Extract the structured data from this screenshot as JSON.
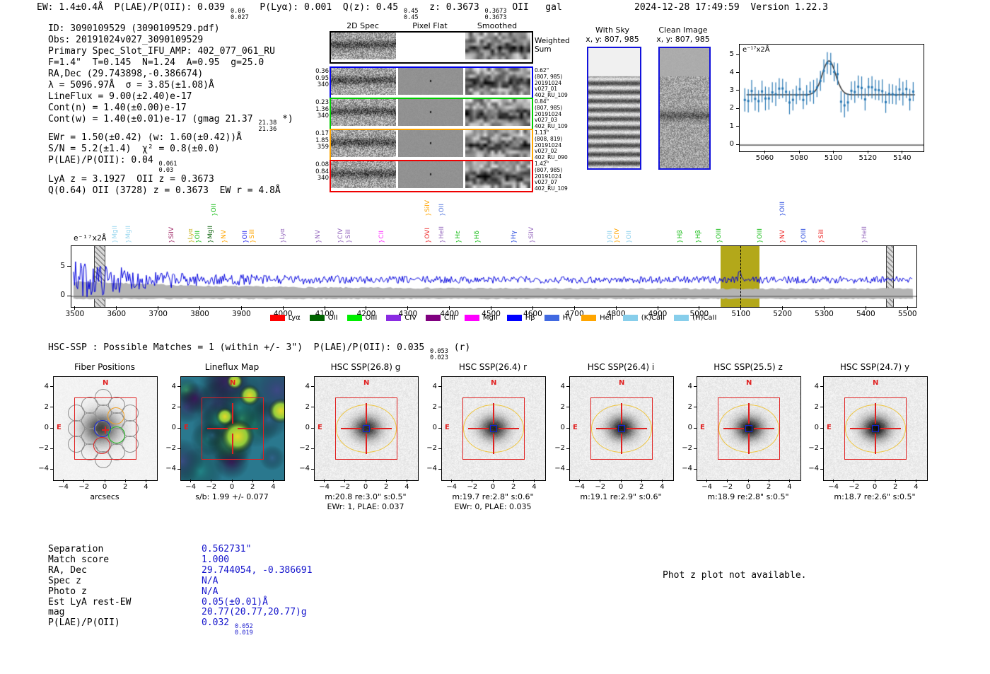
{
  "header": {
    "left_rich": "EW: 1.4±0.4Å  P(LAE)/P(OII): 0.039 {0.06|0.027}  P(Lyα): 0.001  Q(z): 0.45 {0.45|0.45}  z: 0.3673 {0.3673|0.3673} OII   gal",
    "right": "2024-12-28 17:49:59  Version 1.22.3"
  },
  "info_block": {
    "lines": [
      "ID: 3090109529 (3090109529.pdf)",
      "Obs: 20191024v027_3090109529",
      "Primary Spec_Slot_IFU_AMP: 402_077_061_RU",
      "F=1.4\"  T=0.145  N=1.24  A=0.95  g=25.0",
      "RA,Dec (29.743898,-0.386674)",
      "λ = 5096.97Å  σ = 3.85(±1.08)Å",
      "LineFlux = 9.00(±2.40)e-17",
      "Cont(n) = 1.40(±0.00)e-17",
      "Cont(w) = 1.40(±0.01)e-17 (gmag 21.37 {21.38|21.36} *)",
      "EWr = 1.50(±0.42) (w: 1.60(±0.42))Å",
      "S/N = 5.2(±1.4)  χ² = 0.8(±0.0)",
      "P(LAE)/P(OII): 0.04 {0.061|0.03}",
      "LyA z = 3.1927  OII z = 0.3673",
      "Q(0.64) OII (3728) z = 0.3673  EW r = 4.8Å"
    ]
  },
  "spec2d": {
    "col_headers": [
      "2D Spec",
      "Pixel Flat",
      "Smoothed"
    ],
    "rows": [
      {
        "color": "#000000",
        "left": [],
        "right": [
          "Weighted",
          "Sum"
        ]
      },
      {
        "color": "#0000ee",
        "left": [
          "0.36",
          "0.95",
          "340"
        ],
        "right": [
          "0.62\"",
          "(807, 985)",
          "20191024",
          "v027_01",
          "402_RU_109"
        ]
      },
      {
        "color": "#00cc00",
        "left": [
          "0.23",
          "1.36",
          "340"
        ],
        "right": [
          "0.84\"",
          "(807, 985)",
          "20191024",
          "v027_03",
          "402_RU_109"
        ]
      },
      {
        "color": "#ffa500",
        "left": [
          "0.17",
          "1.85",
          "359"
        ],
        "right": [
          "1.13\"",
          "(808, 819)",
          "20191024",
          "v027_02",
          "402_RU_090"
        ]
      },
      {
        "color": "#ee0000",
        "left": [
          "0.08",
          "0.84",
          "340"
        ],
        "right": [
          "1.42\"",
          "(807, 985)",
          "20191024",
          "v027_07",
          "402_RU_109"
        ]
      }
    ]
  },
  "sky_panels": [
    {
      "title": "With Sky",
      "subtitle": "x, y: 807, 985"
    },
    {
      "title": "Clean Image",
      "subtitle": "x, y: 807, 985"
    }
  ],
  "chart_data": [
    {
      "name": "line_fit_zoom",
      "type": "scatter",
      "unit_label": "e⁻¹⁷x2Å",
      "xlim": [
        5045,
        5152
      ],
      "ylim": [
        -0.35,
        5.6
      ],
      "xticks": [
        5060,
        5080,
        5100,
        5120,
        5140
      ],
      "yticks": [
        0,
        1,
        2,
        3,
        4,
        5
      ],
      "gaussian": {
        "center": 5096.97,
        "sigma": 3.85,
        "baseline": 2.8,
        "peak": 4.7
      },
      "points": {
        "x_start": 5048,
        "x_step": 2,
        "x_end": 5146,
        "scatter": 0.95,
        "err": 0.55
      },
      "point_color": "#2878b4",
      "fit_color": "#3c3c3c"
    },
    {
      "name": "full_spectrum",
      "type": "line",
      "unit_label": "e⁻¹⁷x2Å",
      "xlim": [
        3490,
        5520
      ],
      "ylim": [
        -1.8,
        8.6
      ],
      "xticks": [
        3500,
        3600,
        3700,
        3800,
        3900,
        4000,
        4100,
        4200,
        4300,
        4400,
        4500,
        4600,
        4700,
        4800,
        4900,
        5000,
        5100,
        5200,
        5300,
        5400,
        5500
      ],
      "yticks": [
        0,
        5
      ],
      "baseline": 2.85,
      "emission": {
        "center": 5096.97,
        "sigma": 4.5,
        "amp": 1.3
      },
      "line_color": "#0000dd",
      "err_color": "#b4b4b4",
      "highlight_band": {
        "x0": 5050,
        "x1": 5143,
        "color": "#b3a81a"
      },
      "marker_line": 5096.97,
      "hatched_bands": [
        [
          3545,
          3568
        ],
        [
          5447,
          5462
        ]
      ]
    }
  ],
  "line_labels": [
    {
      "wl": 3597,
      "text": "MgII",
      "color": "#9ad7ef",
      "high": false
    },
    {
      "wl": 3629,
      "text": "MgII",
      "color": "#9ad7ef",
      "high": false
    },
    {
      "wl": 3733,
      "text": "SiIV",
      "color": "#a02a68",
      "high": false
    },
    {
      "wl": 3779,
      "text": "Lyα",
      "color": "#c8b422",
      "high": false
    },
    {
      "wl": 3796,
      "text": "OII",
      "color": "#11bb11",
      "high": false
    },
    {
      "wl": 3826,
      "text": "MgII",
      "color": "#116611",
      "high": false
    },
    {
      "wl": 3835,
      "text": "OII",
      "color": "#11bb11",
      "high": true
    },
    {
      "wl": 3859,
      "text": "NV",
      "color": "#ffa500",
      "high": false
    },
    {
      "wl": 3910,
      "text": "OII",
      "color": "#2222ee",
      "high": false
    },
    {
      "wl": 3927,
      "text": "SiII",
      "color": "#ffa500",
      "high": false
    },
    {
      "wl": 4000,
      "text": "Lyα",
      "color": "#9467bd",
      "high": false
    },
    {
      "wl": 4085,
      "text": "NV",
      "color": "#9467bd",
      "high": false
    },
    {
      "wl": 4139,
      "text": "CIV",
      "color": "#9467bd",
      "high": false
    },
    {
      "wl": 4158,
      "text": "SiII",
      "color": "#9467bd",
      "high": false
    },
    {
      "wl": 4237,
      "text": "CII",
      "color": "#ff22ff",
      "high": false
    },
    {
      "wl": 4348,
      "text": "OVI",
      "color": "#ee2222",
      "high": false
    },
    {
      "wl": 4348,
      "text": "SiIV",
      "color": "#ffa500",
      "high": true
    },
    {
      "wl": 4382,
      "text": "HeII",
      "color": "#9467bd",
      "high": false
    },
    {
      "wl": 4382,
      "text": "OII",
      "color": "#5577dd",
      "high": true
    },
    {
      "wl": 4421,
      "text": "Hε",
      "color": "#11bb11",
      "high": false
    },
    {
      "wl": 4467,
      "text": "Hδ",
      "color": "#11bb11",
      "high": false
    },
    {
      "wl": 4555,
      "text": "Hγ",
      "color": "#2244dd",
      "high": false
    },
    {
      "wl": 4598,
      "text": "SiIV",
      "color": "#9467bd",
      "high": false
    },
    {
      "wl": 4786,
      "text": "OII",
      "color": "#87ceeb",
      "high": false
    },
    {
      "wl": 4803,
      "text": "CIV",
      "color": "#ffa500",
      "high": false
    },
    {
      "wl": 4832,
      "text": "OII",
      "color": "#87ceeb",
      "high": false
    },
    {
      "wl": 4954,
      "text": "Hβ",
      "color": "#11bb11",
      "high": false
    },
    {
      "wl": 4998,
      "text": "Hβ",
      "color": "#11bb11",
      "high": false
    },
    {
      "wl": 5048,
      "text": "OIII",
      "color": "#11bb11",
      "high": false
    },
    {
      "wl": 5146,
      "text": "OIII",
      "color": "#11bb11",
      "high": false
    },
    {
      "wl": 5200,
      "text": "NV",
      "color": "#ee2222",
      "high": false
    },
    {
      "wl": 5200,
      "text": "OIII",
      "color": "#2244dd",
      "high": true
    },
    {
      "wl": 5251,
      "text": "OIII",
      "color": "#2244dd",
      "high": false
    },
    {
      "wl": 5294,
      "text": "SiII",
      "color": "#ee2222",
      "high": false
    },
    {
      "wl": 5397,
      "text": "HeII",
      "color": "#9467bd",
      "high": false
    }
  ],
  "legend": [
    {
      "label": "Lyα",
      "color": "#ff0000"
    },
    {
      "label": "OII",
      "color": "#006400"
    },
    {
      "label": "OIII",
      "color": "#00ee00"
    },
    {
      "label": "CIV",
      "color": "#8a2be2"
    },
    {
      "label": "CIII",
      "color": "#800080"
    },
    {
      "label": "MgII",
      "color": "#ff00ff"
    },
    {
      "label": "Hβ",
      "color": "#0000ff"
    },
    {
      "label": "Hγ",
      "color": "#4169e1"
    },
    {
      "label": "HeII",
      "color": "#ffa500"
    },
    {
      "label": "(K)CaII",
      "color": "#87ceeb"
    },
    {
      "label": "(H)CaII",
      "color": "#87ceeb"
    }
  ],
  "match_line_rich": "HSC-SSP : Possible Matches = 1 (within +/- 3\")  P(LAE)/P(OII): 0.035 {0.053|0.023} (r)",
  "cutouts": {
    "xticks": [
      -4,
      -2,
      0,
      2,
      4
    ],
    "yticks": [
      4,
      2,
      0,
      -2,
      -4
    ],
    "panels": [
      {
        "title": "Fiber Positions",
        "xlabel": "arcsecs",
        "xlabel2": "",
        "type": "fiber",
        "north": "N",
        "east": "E"
      },
      {
        "title": "Lineflux Map",
        "xlabel": "s/b: 1.99 +/- 0.077",
        "xlabel2": "",
        "type": "lineflux",
        "north": "N",
        "east": "E"
      },
      {
        "title": "HSC SSP(26.8) g",
        "xlabel": "m:20.8 re:3.0\" s:0.5\"",
        "xlabel2": "EWr: 1, PLAE: 0.037",
        "type": "hsc",
        "north": "N",
        "east": "E"
      },
      {
        "title": "HSC SSP(26.4) r",
        "xlabel": "m:19.7 re:2.8\" s:0.6\"",
        "xlabel2": "EWr: 0, PLAE: 0.035",
        "type": "hsc",
        "north": "N",
        "east": "E"
      },
      {
        "title": "HSC SSP(26.4) i",
        "xlabel": "m:19.1 re:2.9\" s:0.6\"",
        "xlabel2": "",
        "type": "hsc",
        "north": "N",
        "east": "E"
      },
      {
        "title": "HSC SSP(25.5) z",
        "xlabel": "m:18.9 re:2.8\" s:0.5\"",
        "xlabel2": "",
        "type": "hsc",
        "north": "N",
        "east": "E"
      },
      {
        "title": "HSC SSP(24.7) y",
        "xlabel": "m:18.7 re:2.6\" s:0.5\"",
        "xlabel2": "",
        "type": "hsc",
        "north": "N",
        "east": "E"
      }
    ]
  },
  "match_table": {
    "value_color": "#1414cc",
    "rows": [
      {
        "label": "Separation",
        "value": "0.562731\""
      },
      {
        "label": "Match score",
        "value": "1.000"
      },
      {
        "label": "RA, Dec",
        "value": "29.744054, -0.386691"
      },
      {
        "label": "Spec z",
        "value": "N/A"
      },
      {
        "label": "Photo z",
        "value": "N/A"
      },
      {
        "label": "Est LyA rest-EW",
        "value": "0.05(±0.01)Å"
      },
      {
        "label": "mag",
        "value": "20.77(20.77,20.77)g"
      },
      {
        "label": "P(LAE)/P(OII)",
        "value": "0.032 {0.052|0.019}"
      }
    ]
  },
  "photz_note": "Phot z plot not available."
}
